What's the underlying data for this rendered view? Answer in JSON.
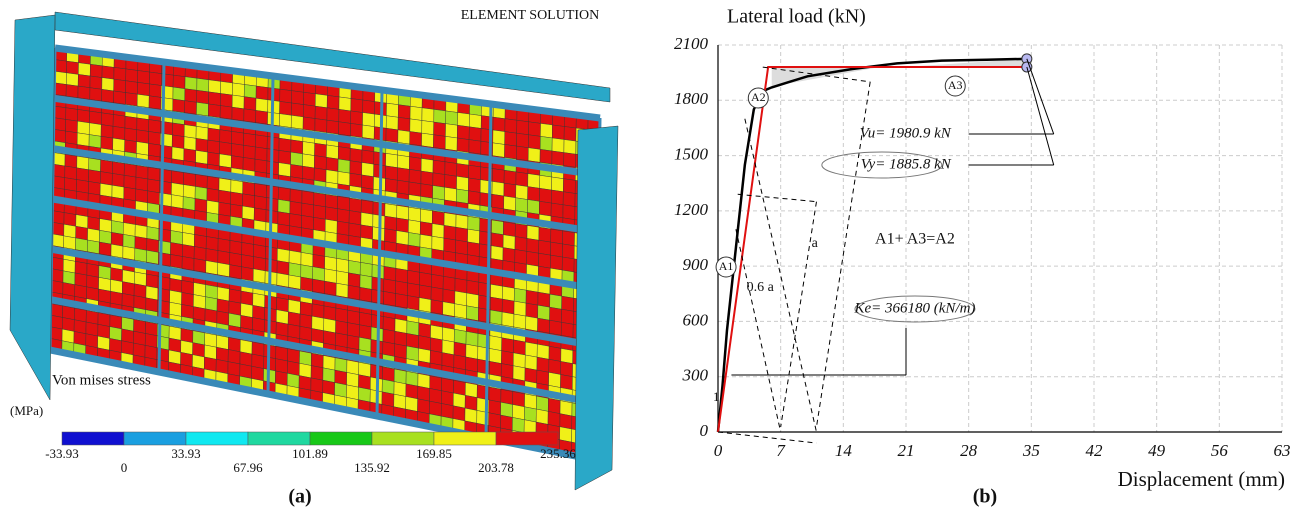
{
  "panel_a": {
    "title": "ELEMENT SOLUTION",
    "legend_title": "Von mises stress",
    "unit": "(MPa)",
    "colorbar": {
      "levels": [
        -33.93,
        0,
        33.93,
        67.96,
        101.89,
        135.92,
        169.85,
        203.78,
        235.36
      ],
      "colors": [
        "#1010d0",
        "#1a9fe0",
        "#10e8f0",
        "#20d8a0",
        "#18c818",
        "#a8e020",
        "#f0f018",
        "#e01010"
      ]
    },
    "caption": "(a)"
  },
  "chart_data": {
    "type": "line",
    "y_label": "Lateral load (kN)",
    "x_label": "Displacement  (mm)",
    "caption": "(b)",
    "xlim": [
      0,
      63
    ],
    "xticks": [
      0,
      7,
      14,
      21,
      28,
      35,
      42,
      49,
      56,
      63
    ],
    "ylim": [
      0,
      2100
    ],
    "yticks": [
      0,
      300,
      600,
      900,
      1200,
      1500,
      1800,
      2100
    ],
    "grid": true,
    "series": [
      {
        "color": "#000000",
        "x": [
          0,
          0.5,
          1,
          2,
          3,
          4,
          5,
          6,
          8,
          10,
          15,
          20,
          25,
          30,
          34.5
        ],
        "values": [
          0,
          250,
          550,
          1000,
          1450,
          1750,
          1850,
          1870,
          1900,
          1930,
          1970,
          2000,
          2015,
          2020,
          2025
        ]
      },
      {
        "color": "#e01010",
        "x": [
          0,
          5.6,
          34.5
        ],
        "values": [
          0,
          1980.9,
          1980.9
        ]
      }
    ],
    "annotations": [
      "Vu= 1980.9 kN",
      "Vy= 1885.8 kN",
      "A1+ A3=A2",
      "Ke= 366180 (kN/m)",
      "A1",
      "A2",
      "A3",
      "0.6 a",
      "a",
      "1"
    ]
  }
}
